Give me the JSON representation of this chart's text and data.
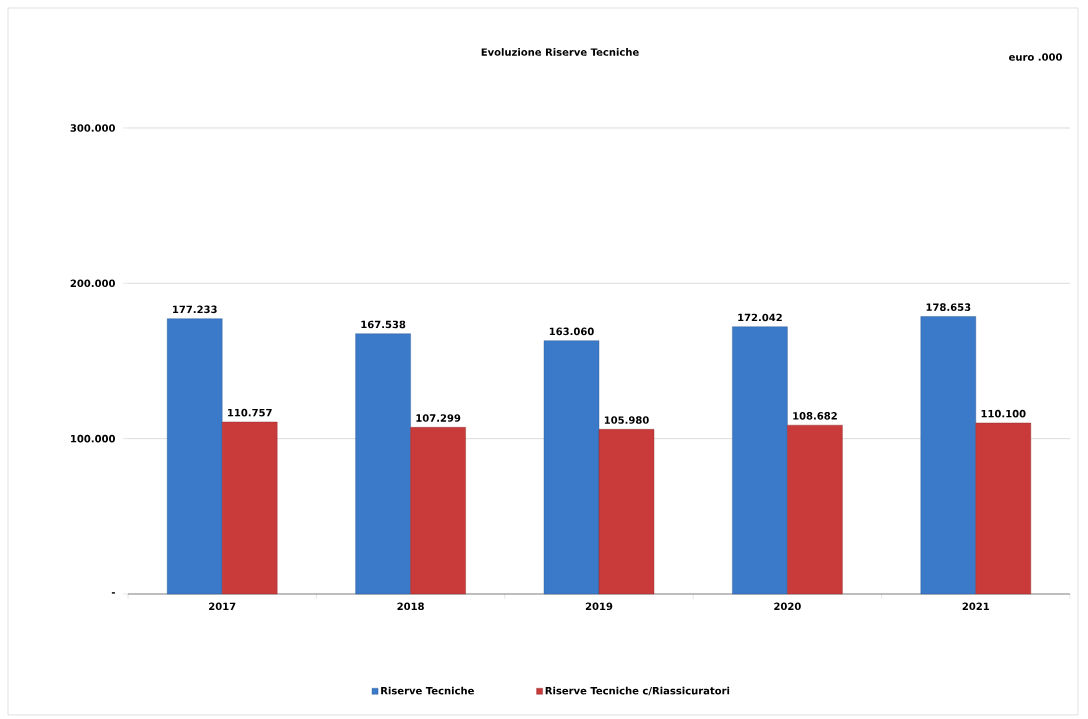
{
  "chart_data": {
    "type": "bar",
    "title": "Evoluzione  Riserve Tecniche",
    "annotations": [
      "euro .000"
    ],
    "categories": [
      "2017",
      "2018",
      "2019",
      "2020",
      "2021"
    ],
    "series": [
      {
        "name": "Riserve Tecniche",
        "color": "#3b79c9",
        "values": [
          177233,
          167538,
          163060,
          172042,
          178653
        ],
        "value_labels": [
          "177.233",
          "167.538",
          "163.060",
          "172.042",
          "178.653"
        ]
      },
      {
        "name": "Riserve Tecniche c/Riassicuratori",
        "color": "#c93a3a",
        "values": [
          110757,
          107299,
          105980,
          108682,
          110100
        ],
        "value_labels": [
          "110.757",
          "107.299",
          "105.980",
          "108.682",
          "110.100"
        ]
      }
    ],
    "ylim": [
      0,
      300000
    ],
    "yticks": [
      {
        "value": 0,
        "label": "-"
      },
      {
        "value": 100000,
        "label": "100.000"
      },
      {
        "value": 200000,
        "label": "200.000"
      },
      {
        "value": 300000,
        "label": "300.000"
      }
    ],
    "grid": "y",
    "legend": "bottom"
  }
}
